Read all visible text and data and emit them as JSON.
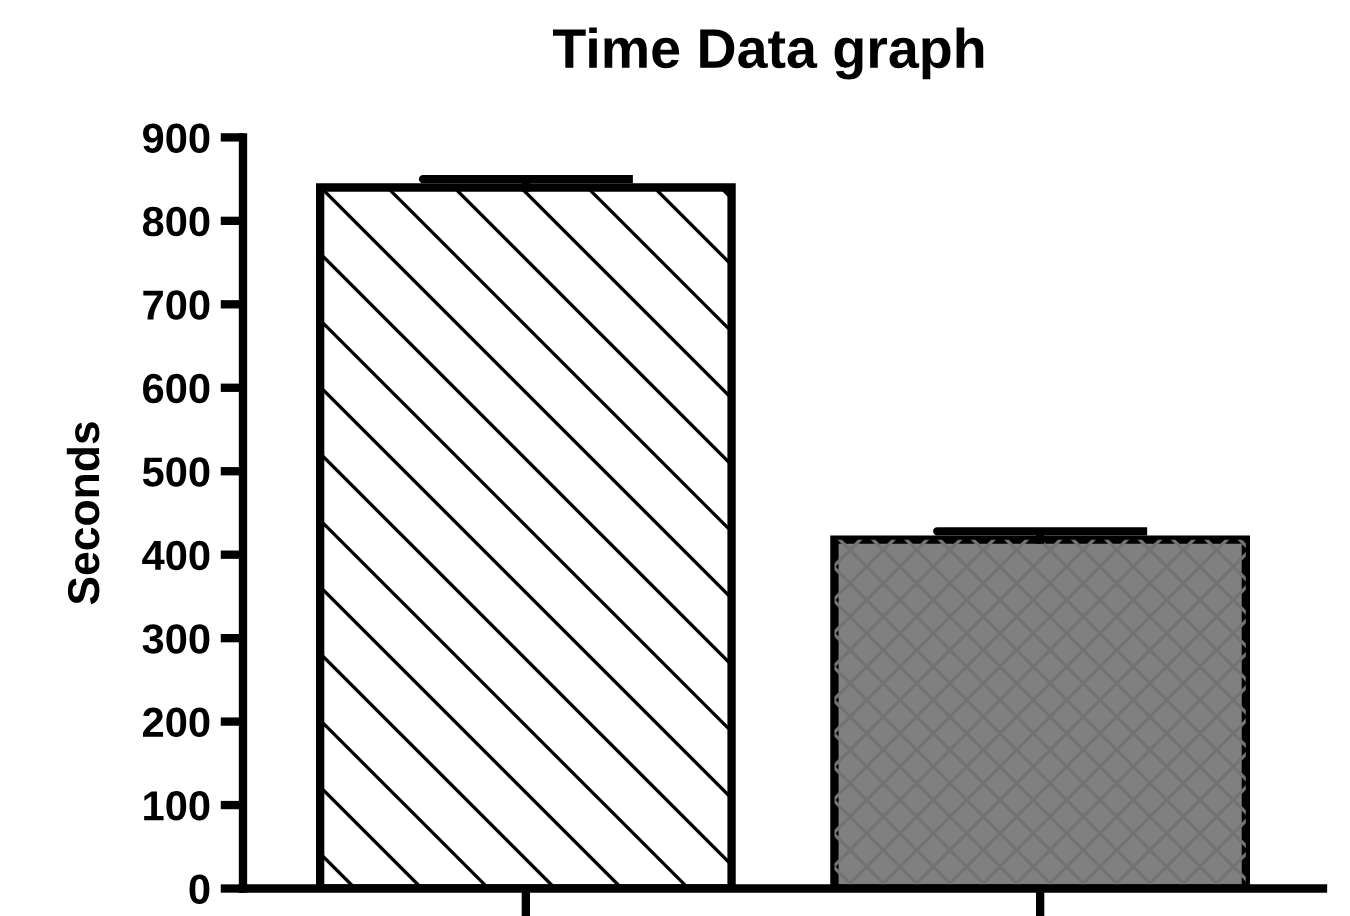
{
  "chart_data": {
    "type": "bar",
    "title": "Time Data graph",
    "ylabel": "Seconds",
    "categories": [
      null,
      null
    ],
    "values": [
      840,
      418
    ],
    "errors": [
      [
        840,
        850
      ],
      [
        418,
        428
      ]
    ],
    "colors": [
      "#ffffff",
      "#808080"
    ],
    "ylim": [
      0,
      900
    ],
    "yticks": [
      0,
      100,
      200,
      300,
      400,
      500,
      600,
      700,
      800,
      900
    ],
    "grid": false,
    "legend": false
  }
}
